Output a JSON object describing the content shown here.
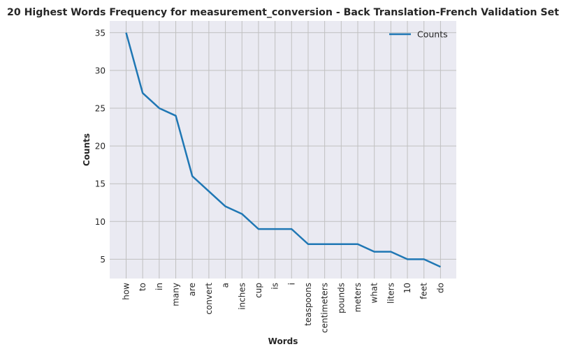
{
  "chart_data": {
    "type": "line",
    "title": "20 Highest Words Frequency for measurement_conversion - Back Translation-French Validation Set",
    "xlabel": "Words",
    "ylabel": "Counts",
    "categories": [
      "how",
      "to",
      "in",
      "many",
      "are",
      "convert",
      "a",
      "inches",
      "cup",
      "is",
      "i",
      "teaspoons",
      "centimeters",
      "pounds",
      "meters",
      "what",
      "liters",
      "10",
      "feet",
      "do"
    ],
    "series": [
      {
        "name": "Counts",
        "values": [
          35,
          27,
          25,
          24,
          16,
          14,
          12,
          11,
          9,
          9,
          9,
          7,
          7,
          7,
          7,
          6,
          6,
          5,
          5,
          4
        ],
        "color": "#1f77b4"
      }
    ],
    "yticks": [
      5,
      10,
      15,
      20,
      25,
      30,
      35
    ],
    "ylim": [
      2.45,
      36.55
    ],
    "grid": true,
    "legend_position": "top-right",
    "style": {
      "background": "#eaeaf2",
      "grid_color": "#c0c0c0"
    }
  }
}
